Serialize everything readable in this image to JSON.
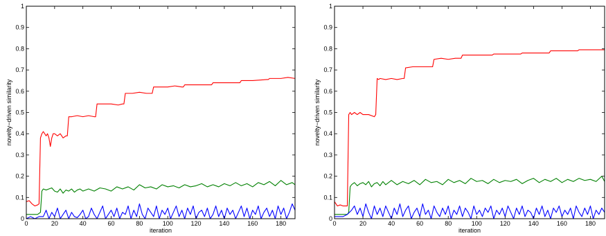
{
  "chart_data": [
    {
      "type": "line",
      "xlabel": "iteration",
      "ylabel": "novelty−driven similarity",
      "xlim": [
        0,
        190
      ],
      "ylim": [
        0,
        1
      ],
      "xticks": [
        0,
        20,
        40,
        60,
        80,
        100,
        120,
        140,
        160,
        180
      ],
      "yticks": [
        0,
        0.1,
        0.2,
        0.3,
        0.4,
        0.5,
        0.6,
        0.7,
        0.8,
        0.9,
        1
      ],
      "ytick_labels": [
        "0",
        "0.1",
        "0.2",
        "0.3",
        "0.4",
        "0.5",
        "0.6",
        "0.7",
        "0.8",
        "0.9",
        "1"
      ],
      "grid": false,
      "series": [
        {
          "color": "#ff0000",
          "x": [
            0,
            2,
            4,
            6,
            8,
            9,
            10,
            11,
            12,
            14,
            15,
            16,
            17,
            18,
            19,
            20,
            22,
            24,
            26,
            28,
            29,
            30,
            32,
            36,
            40,
            44,
            48,
            49,
            50,
            55,
            60,
            65,
            68,
            69,
            70,
            75,
            80,
            85,
            88,
            89,
            90,
            95,
            100,
            105,
            110,
            111,
            112,
            120,
            130,
            131,
            132,
            140,
            150,
            151,
            152,
            160,
            170,
            171,
            172,
            180,
            185,
            190
          ],
          "y": [
            0.08,
            0.085,
            0.07,
            0.06,
            0.065,
            0.07,
            0.38,
            0.4,
            0.41,
            0.39,
            0.4,
            0.38,
            0.34,
            0.38,
            0.4,
            0.4,
            0.39,
            0.4,
            0.38,
            0.39,
            0.39,
            0.48,
            0.48,
            0.485,
            0.48,
            0.485,
            0.48,
            0.48,
            0.54,
            0.54,
            0.54,
            0.535,
            0.54,
            0.54,
            0.59,
            0.59,
            0.595,
            0.59,
            0.59,
            0.59,
            0.62,
            0.62,
            0.62,
            0.625,
            0.62,
            0.62,
            0.63,
            0.63,
            0.63,
            0.63,
            0.64,
            0.64,
            0.64,
            0.64,
            0.65,
            0.65,
            0.655,
            0.655,
            0.66,
            0.66,
            0.665,
            0.66
          ]
        },
        {
          "color": "#008000",
          "x": [
            0,
            4,
            8,
            9,
            10,
            11,
            12,
            14,
            16,
            18,
            20,
            22,
            24,
            26,
            28,
            30,
            32,
            34,
            36,
            38,
            40,
            44,
            48,
            52,
            56,
            60,
            64,
            68,
            72,
            76,
            80,
            84,
            88,
            92,
            96,
            100,
            104,
            108,
            112,
            116,
            120,
            124,
            128,
            132,
            136,
            140,
            144,
            148,
            152,
            156,
            160,
            164,
            168,
            172,
            176,
            180,
            184,
            188,
            190
          ],
          "y": [
            0.02,
            0.02,
            0.02,
            0.025,
            0.03,
            0.13,
            0.14,
            0.135,
            0.14,
            0.145,
            0.13,
            0.125,
            0.14,
            0.12,
            0.135,
            0.13,
            0.14,
            0.125,
            0.135,
            0.14,
            0.13,
            0.14,
            0.13,
            0.145,
            0.14,
            0.13,
            0.15,
            0.14,
            0.15,
            0.135,
            0.16,
            0.145,
            0.15,
            0.14,
            0.16,
            0.15,
            0.155,
            0.145,
            0.16,
            0.15,
            0.155,
            0.165,
            0.15,
            0.16,
            0.15,
            0.165,
            0.155,
            0.17,
            0.155,
            0.165,
            0.15,
            0.17,
            0.16,
            0.175,
            0.155,
            0.18,
            0.16,
            0.17,
            0.16
          ]
        },
        {
          "color": "#0000ff",
          "x": [
            0,
            3,
            6,
            9,
            12,
            14,
            16,
            18,
            20,
            22,
            24,
            26,
            28,
            30,
            32,
            34,
            36,
            38,
            40,
            42,
            44,
            46,
            48,
            50,
            52,
            54,
            56,
            58,
            60,
            62,
            64,
            66,
            68,
            70,
            72,
            74,
            76,
            78,
            80,
            82,
            84,
            86,
            88,
            90,
            92,
            94,
            96,
            98,
            100,
            102,
            104,
            106,
            108,
            110,
            112,
            114,
            116,
            118,
            120,
            122,
            124,
            126,
            128,
            130,
            132,
            134,
            136,
            138,
            140,
            142,
            144,
            146,
            148,
            150,
            152,
            154,
            156,
            158,
            160,
            162,
            164,
            166,
            168,
            170,
            172,
            174,
            176,
            178,
            180,
            182,
            184,
            186,
            188,
            190
          ],
          "y": [
            0,
            0.01,
            0,
            0.01,
            0.01,
            0.04,
            0,
            0.03,
            0.01,
            0.05,
            0,
            0.02,
            0.04,
            0,
            0.03,
            0.01,
            0.005,
            0.02,
            0.04,
            0,
            0.01,
            0.05,
            0.02,
            0,
            0.03,
            0.06,
            0,
            0.02,
            0.04,
            0.01,
            0.05,
            0,
            0.03,
            0.02,
            0.06,
            0,
            0.04,
            0.01,
            0.07,
            0.02,
            0,
            0.05,
            0.03,
            0.01,
            0.06,
            0,
            0.04,
            0.02,
            0.05,
            0,
            0.03,
            0.06,
            0.01,
            0.04,
            0,
            0.05,
            0.02,
            0.06,
            0,
            0.03,
            0.04,
            0.01,
            0.05,
            0,
            0.02,
            0.06,
            0.01,
            0.04,
            0,
            0.05,
            0.02,
            0.04,
            0,
            0.03,
            0.06,
            0.01,
            0.05,
            0,
            0.04,
            0.02,
            0.06,
            0,
            0.03,
            0.05,
            0.01,
            0.04,
            0,
            0.06,
            0.02,
            0.05,
            0,
            0.03,
            0.07,
            0.04
          ]
        }
      ]
    },
    {
      "type": "line",
      "xlabel": "iteration",
      "ylabel": "novelty−driven similarity",
      "xlim": [
        0,
        190
      ],
      "ylim": [
        0,
        1
      ],
      "xticks": [
        0,
        20,
        40,
        60,
        80,
        100,
        120,
        140,
        160,
        180
      ],
      "yticks": [
        0,
        0.1,
        0.2,
        0.3,
        0.4,
        0.5,
        0.6,
        0.7,
        0.8,
        0.9,
        1
      ],
      "ytick_labels": [
        "0",
        "0.1",
        "0.2",
        "0.3",
        "0.4",
        "0.5",
        "0.6",
        "0.7",
        "0.8",
        "0.9",
        "1"
      ],
      "grid": false,
      "series": [
        {
          "color": "#ff0000",
          "x": [
            0,
            2,
            4,
            6,
            8,
            9,
            10,
            11,
            12,
            14,
            16,
            18,
            20,
            24,
            28,
            29,
            30,
            31,
            32,
            36,
            40,
            44,
            48,
            49,
            50,
            55,
            60,
            65,
            69,
            70,
            75,
            80,
            85,
            89,
            90,
            100,
            110,
            111,
            112,
            120,
            130,
            131,
            132,
            140,
            150,
            151,
            152,
            160,
            170,
            171,
            172,
            180,
            190
          ],
          "y": [
            0.08,
            0.06,
            0.065,
            0.06,
            0.06,
            0.06,
            0.49,
            0.5,
            0.49,
            0.5,
            0.49,
            0.5,
            0.49,
            0.49,
            0.48,
            0.49,
            0.66,
            0.655,
            0.66,
            0.655,
            0.66,
            0.655,
            0.66,
            0.66,
            0.71,
            0.715,
            0.715,
            0.715,
            0.715,
            0.75,
            0.755,
            0.75,
            0.755,
            0.755,
            0.77,
            0.77,
            0.77,
            0.77,
            0.775,
            0.775,
            0.775,
            0.775,
            0.78,
            0.78,
            0.78,
            0.78,
            0.79,
            0.79,
            0.79,
            0.79,
            0.795,
            0.795,
            0.795
          ]
        },
        {
          "color": "#008000",
          "x": [
            0,
            4,
            8,
            9,
            10,
            11,
            12,
            14,
            16,
            18,
            20,
            22,
            24,
            26,
            28,
            30,
            32,
            34,
            36,
            38,
            40,
            44,
            48,
            52,
            56,
            60,
            64,
            68,
            72,
            76,
            80,
            84,
            88,
            92,
            96,
            100,
            104,
            108,
            112,
            116,
            120,
            124,
            128,
            132,
            136,
            140,
            144,
            148,
            152,
            156,
            160,
            164,
            168,
            172,
            176,
            180,
            184,
            188,
            190
          ],
          "y": [
            0.02,
            0.02,
            0.02,
            0.02,
            0.03,
            0.15,
            0.16,
            0.17,
            0.155,
            0.165,
            0.17,
            0.16,
            0.175,
            0.15,
            0.165,
            0.17,
            0.155,
            0.175,
            0.16,
            0.17,
            0.18,
            0.16,
            0.175,
            0.165,
            0.18,
            0.16,
            0.185,
            0.17,
            0.175,
            0.16,
            0.185,
            0.17,
            0.18,
            0.165,
            0.19,
            0.175,
            0.18,
            0.165,
            0.185,
            0.17,
            0.18,
            0.175,
            0.185,
            0.165,
            0.18,
            0.19,
            0.17,
            0.185,
            0.175,
            0.19,
            0.17,
            0.185,
            0.175,
            0.19,
            0.18,
            0.185,
            0.175,
            0.2,
            0.175
          ]
        },
        {
          "color": "#0000ff",
          "x": [
            0,
            3,
            6,
            9,
            12,
            14,
            16,
            18,
            20,
            22,
            24,
            26,
            28,
            30,
            32,
            34,
            36,
            38,
            40,
            42,
            44,
            46,
            48,
            50,
            52,
            54,
            56,
            58,
            60,
            62,
            64,
            66,
            68,
            70,
            72,
            74,
            76,
            78,
            80,
            82,
            84,
            86,
            88,
            90,
            92,
            94,
            96,
            98,
            100,
            102,
            104,
            106,
            108,
            110,
            112,
            114,
            116,
            118,
            120,
            122,
            124,
            126,
            128,
            130,
            132,
            134,
            136,
            138,
            140,
            142,
            144,
            146,
            148,
            150,
            152,
            154,
            156,
            158,
            160,
            162,
            164,
            166,
            168,
            170,
            172,
            174,
            176,
            178,
            180,
            182,
            184,
            186,
            188,
            190
          ],
          "y": [
            0.01,
            0.01,
            0.01,
            0.02,
            0.04,
            0.06,
            0.02,
            0.05,
            0.01,
            0.07,
            0.03,
            0,
            0.06,
            0.02,
            0.05,
            0.01,
            0.06,
            0.03,
            0,
            0.05,
            0.02,
            0.07,
            0.01,
            0.04,
            0.06,
            0,
            0.03,
            0.05,
            0.01,
            0.07,
            0.02,
            0.04,
            0,
            0.06,
            0.03,
            0.01,
            0.05,
            0.02,
            0.06,
            0,
            0.04,
            0.02,
            0.06,
            0.01,
            0.05,
            0.03,
            0,
            0.06,
            0.02,
            0.04,
            0.01,
            0.05,
            0.03,
            0.06,
            0,
            0.04,
            0.02,
            0.05,
            0.01,
            0.06,
            0.03,
            0,
            0.05,
            0.02,
            0.06,
            0.01,
            0.04,
            0.03,
            0,
            0.05,
            0.02,
            0.06,
            0.01,
            0.04,
            0,
            0.05,
            0.03,
            0.06,
            0.01,
            0.04,
            0.02,
            0.05,
            0,
            0.06,
            0.03,
            0.01,
            0.05,
            0.02,
            0.06,
            0,
            0.04,
            0.02,
            0.05,
            0.03
          ]
        }
      ]
    }
  ]
}
